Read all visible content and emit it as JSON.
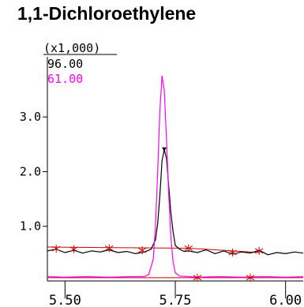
{
  "chart_data": {
    "type": "line",
    "title": "1,1-Dichloroethylene",
    "y_multiplier_label": "(x1,000)",
    "xlabel": "",
    "ylabel": "",
    "x_ticks": [
      "5.50",
      "5.75",
      "6.00"
    ],
    "y_ticks": [
      "1.0",
      "2.0",
      "3.0"
    ],
    "xlim": [
      5.46,
      6.04
    ],
    "ylim": [
      0,
      4.1
    ],
    "grid": false,
    "series": [
      {
        "name": "96.00",
        "color": "#000000",
        "x": [
          5.46,
          5.48,
          5.5,
          5.52,
          5.54,
          5.56,
          5.58,
          5.6,
          5.62,
          5.64,
          5.66,
          5.68,
          5.695,
          5.705,
          5.71,
          5.715,
          5.72,
          5.725,
          5.73,
          5.735,
          5.74,
          5.745,
          5.75,
          5.76,
          5.77,
          5.78,
          5.8,
          5.82,
          5.84,
          5.86,
          5.88,
          5.9,
          5.92,
          5.94,
          5.96,
          5.98,
          6.0,
          6.02,
          6.04
        ],
        "values": [
          0.55,
          0.58,
          0.52,
          0.56,
          0.51,
          0.55,
          0.53,
          0.57,
          0.52,
          0.54,
          0.5,
          0.53,
          0.58,
          0.75,
          1.05,
          1.55,
          2.2,
          2.4,
          2.25,
          1.75,
          1.25,
          0.9,
          0.65,
          0.58,
          0.54,
          0.55,
          0.52,
          0.57,
          0.5,
          0.55,
          0.49,
          0.53,
          0.51,
          0.56,
          0.48,
          0.52,
          0.5,
          0.53,
          0.51
        ]
      },
      {
        "name": "61.00",
        "color": "#ff00ff",
        "x": [
          5.46,
          5.5,
          5.55,
          5.6,
          5.65,
          5.68,
          5.69,
          5.7,
          5.705,
          5.71,
          5.715,
          5.72,
          5.725,
          5.73,
          5.735,
          5.74,
          5.745,
          5.75,
          5.76,
          5.78,
          5.8,
          5.85,
          5.9,
          5.95,
          6.0,
          6.04
        ],
        "values": [
          0.08,
          0.07,
          0.08,
          0.07,
          0.08,
          0.08,
          0.12,
          0.4,
          1.0,
          2.0,
          3.1,
          3.75,
          3.5,
          2.6,
          1.6,
          0.8,
          0.35,
          0.15,
          0.09,
          0.08,
          0.07,
          0.08,
          0.07,
          0.08,
          0.07,
          0.08
        ]
      }
    ],
    "baselines": [
      {
        "color": "#cc0000",
        "x": [
          5.46,
          5.78
        ],
        "values": [
          0.62,
          0.6
        ]
      },
      {
        "color": "#cc0000",
        "x": [
          5.78,
          5.94
        ],
        "values": [
          0.6,
          0.52
        ]
      },
      {
        "color": "#cc0000",
        "x": [
          5.46,
          6.04
        ],
        "values": [
          0.06,
          0.06
        ]
      }
    ],
    "markers": [
      {
        "x": 5.48,
        "y": 0.59
      },
      {
        "x": 5.52,
        "y": 0.58
      },
      {
        "x": 5.6,
        "y": 0.6
      },
      {
        "x": 5.675,
        "y": 0.56
      },
      {
        "x": 5.78,
        "y": 0.6
      },
      {
        "x": 5.88,
        "y": 0.52
      },
      {
        "x": 5.94,
        "y": 0.55
      },
      {
        "x": 5.8,
        "y": 0.06
      },
      {
        "x": 5.92,
        "y": 0.06
      }
    ],
    "peak_apex": {
      "x": 5.725,
      "y": 2.4
    }
  }
}
